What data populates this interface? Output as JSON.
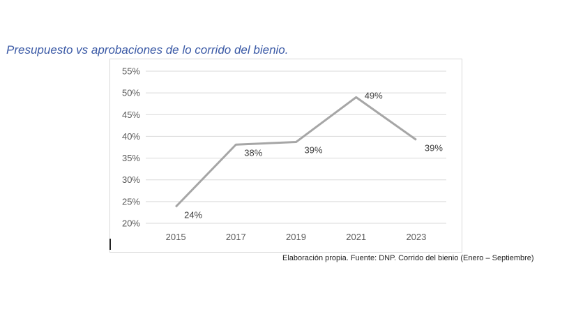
{
  "title": "Presupuesto vs aprobaciones de lo corrido del bienio.",
  "source_note": "Elaboración propia. Fuente: DNP. Corrido del bienio (Enero – Septiembre)",
  "colors": {
    "title": "#3b5aa6",
    "line": "#a6a6a6",
    "grid": "#d9d9d9"
  },
  "chart_data": {
    "type": "line",
    "categories": [
      "2015",
      "2017",
      "2019",
      "2021",
      "2023"
    ],
    "values": [
      23.8,
      38.1,
      38.7,
      49.0,
      39.2
    ],
    "data_labels": [
      "24%",
      "38%",
      "39%",
      "49%",
      "39%"
    ],
    "yticks": [
      "20%",
      "25%",
      "30%",
      "35%",
      "40%",
      "45%",
      "50%",
      "55%"
    ],
    "ylim": [
      20,
      55
    ],
    "grid": true,
    "legend": "none"
  }
}
